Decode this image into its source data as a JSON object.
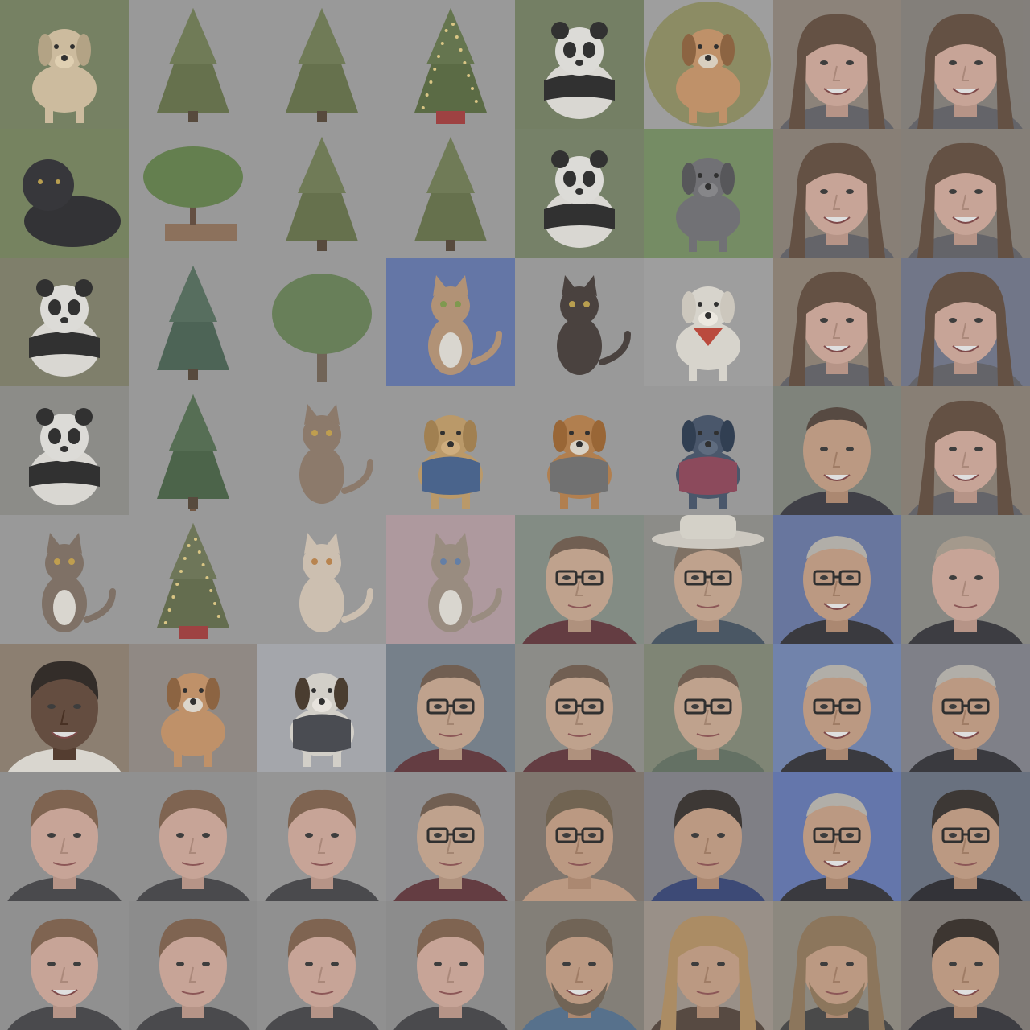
{
  "grid": {
    "rows": 8,
    "cols": 8,
    "tiles": [
      {
        "subject": "golden-retriever-dog",
        "bg": "#6f7d58"
      },
      {
        "subject": "christmas-tree",
        "bg": "#9a9a9a"
      },
      {
        "subject": "christmas-tree",
        "bg": "#9a9a9a"
      },
      {
        "subject": "christmas-tree-lit",
        "bg": "#9a9a9a"
      },
      {
        "subject": "panda-in-tree",
        "bg": "#6d7a5a"
      },
      {
        "subject": "beagle-circle",
        "bg": "#a0a0a0"
      },
      {
        "subject": "woman-face",
        "bg": "#8a7f74"
      },
      {
        "subject": "woman-face",
        "bg": "#7f7a75"
      },
      {
        "subject": "black-panther",
        "bg": "#6f7f55"
      },
      {
        "subject": "bonsai-tree",
        "bg": "#9a9a9a"
      },
      {
        "subject": "christmas-tree",
        "bg": "#9a9a9a"
      },
      {
        "subject": "christmas-tree",
        "bg": "#9a9a9a"
      },
      {
        "subject": "panda",
        "bg": "#6f7d5f"
      },
      {
        "subject": "great-dane-dog",
        "bg": "#6e8a5a"
      },
      {
        "subject": "woman-face",
        "bg": "#857a70"
      },
      {
        "subject": "woman-face",
        "bg": "#827a72"
      },
      {
        "subject": "panda-cub",
        "bg": "#7a7a62"
      },
      {
        "subject": "spruce-tree",
        "bg": "#9a9a9a"
      },
      {
        "subject": "oak-tree",
        "bg": "#9a9a9a"
      },
      {
        "subject": "calico-cat",
        "bg": "#5a6faa"
      },
      {
        "subject": "sphynx-cat",
        "bg": "#9a9a9a"
      },
      {
        "subject": "westie-dog",
        "bg": "#a0a0a0"
      },
      {
        "subject": "woman-face",
        "bg": "#8a7d6e"
      },
      {
        "subject": "woman-face",
        "bg": "#6a7086"
      },
      {
        "subject": "panda-climbing",
        "bg": "#8a8a86"
      },
      {
        "subject": "pine-tree",
        "bg": "#9a9a9a"
      },
      {
        "subject": "tabby-cat-standing",
        "bg": "#9a9a9a"
      },
      {
        "subject": "dog-police-costume",
        "bg": "#9a9a9a"
      },
      {
        "subject": "sheltie-dog-vest",
        "bg": "#9a9a9a"
      },
      {
        "subject": "greyhound-harness",
        "bg": "#9a9a9a"
      },
      {
        "subject": "man-face",
        "bg": "#7a7f76"
      },
      {
        "subject": "woman-face",
        "bg": "#867a6e"
      },
      {
        "subject": "kitten",
        "bg": "#9a9a9a"
      },
      {
        "subject": "small-christmas-tree",
        "bg": "#9a9a9a"
      },
      {
        "subject": "british-cat",
        "bg": "#9a9a9a"
      },
      {
        "subject": "grumpy-cat",
        "bg": "#b49aa0"
      },
      {
        "subject": "man-glasses",
        "bg": "#7f8a80"
      },
      {
        "subject": "man-glasses-hat",
        "bg": "#8a8a86"
      },
      {
        "subject": "older-man-glasses",
        "bg": "#5f6fa0"
      },
      {
        "subject": "older-man",
        "bg": "#85857f"
      },
      {
        "subject": "man-smiling",
        "bg": "#8a7a6a"
      },
      {
        "subject": "beagle-puppy",
        "bg": "#8f8780"
      },
      {
        "subject": "dog-snow-coat",
        "bg": "#a8aab0"
      },
      {
        "subject": "man-glasses",
        "bg": "#707c88"
      },
      {
        "subject": "man-glasses",
        "bg": "#8a8a86"
      },
      {
        "subject": "man-glasses-eating",
        "bg": "#7a826e"
      },
      {
        "subject": "older-man-glasses",
        "bg": "#6a7fb0"
      },
      {
        "subject": "older-man-glasses",
        "bg": "#7a7c86"
      },
      {
        "subject": "young-man",
        "bg": "#8f8f8f"
      },
      {
        "subject": "young-man",
        "bg": "#8f8f8f"
      },
      {
        "subject": "young-man",
        "bg": "#959595"
      },
      {
        "subject": "man-glasses",
        "bg": "#8f8f92"
      },
      {
        "subject": "man-glasses-hands",
        "bg": "#7a6f66"
      },
      {
        "subject": "man-suit",
        "bg": "#7a7a82"
      },
      {
        "subject": "older-man-glasses",
        "bg": "#5a70b0"
      },
      {
        "subject": "man-glasses-suit",
        "bg": "#606a7a"
      },
      {
        "subject": "young-man-smiling",
        "bg": "#8f8f8f"
      },
      {
        "subject": "young-man",
        "bg": "#8a8a8a"
      },
      {
        "subject": "young-man",
        "bg": "#8f8f8f"
      },
      {
        "subject": "young-man",
        "bg": "#8a8a8a"
      },
      {
        "subject": "man-beard",
        "bg": "#7f7a72"
      },
      {
        "subject": "man-blond",
        "bg": "#9a8f86"
      },
      {
        "subject": "man-long-hair",
        "bg": "#8a857a"
      },
      {
        "subject": "man-dark-hair",
        "bg": "#7a7570"
      }
    ]
  }
}
